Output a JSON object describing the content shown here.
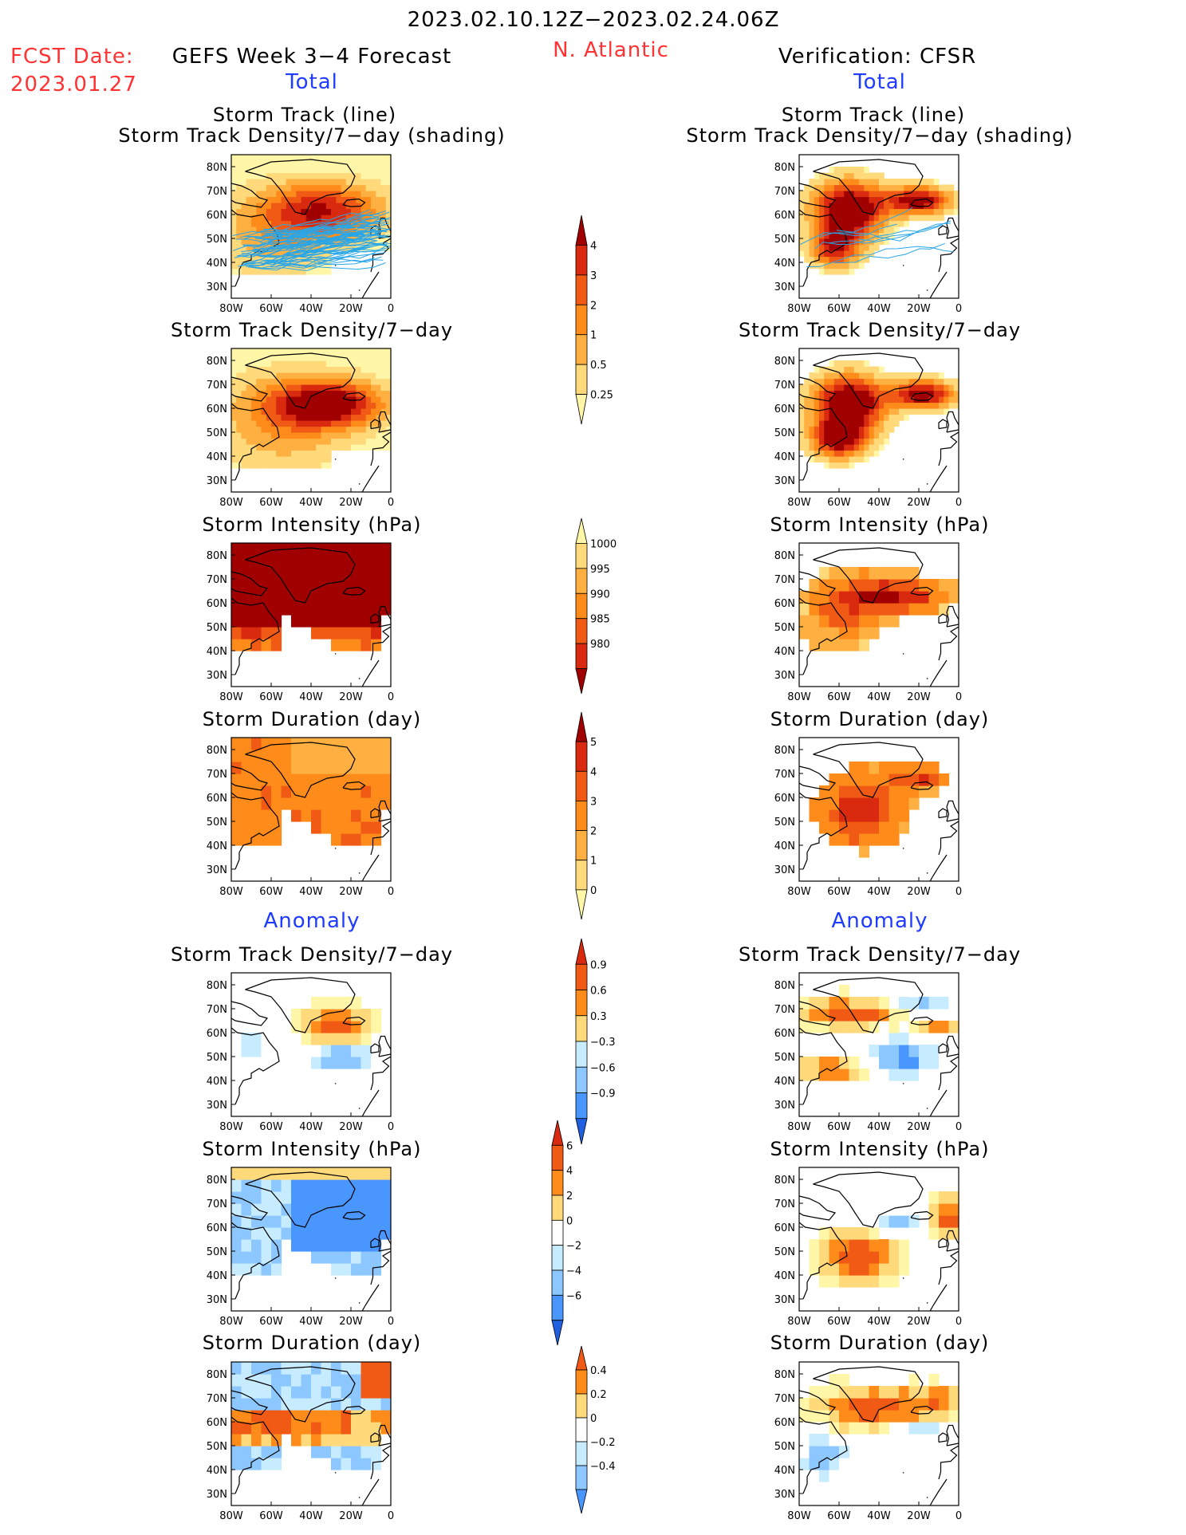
{
  "header": {
    "date_range": "2023.02.10.12Z−2023.02.24.06Z",
    "fcst_label": "FCST Date:",
    "fcst_date": "2023.01.27",
    "left_title": "GEFS Week 3−4 Forecast",
    "region": "N. Atlantic",
    "right_title": "Verification: CFSR",
    "total_left": "Total",
    "total_right": "Total",
    "anomaly_left": "Anomaly",
    "anomaly_right": "Anomaly"
  },
  "panel_titles": {
    "track_line": "Storm Track (line)",
    "track_shading": "Storm Track Density/7−day (shading)",
    "density": "Storm Track Density/7−day",
    "intensity": "Storm Intensity (hPa)",
    "duration": "Storm Duration (day)"
  },
  "axes": {
    "lat_ticks": [
      "80N",
      "70N",
      "60N",
      "50N",
      "40N",
      "30N"
    ],
    "lon_ticks": [
      "80W",
      "60W",
      "40W",
      "20W",
      "0"
    ]
  },
  "colorbars": {
    "total_density": [
      "4",
      "3",
      "2",
      "1",
      "0.5",
      "0.25"
    ],
    "total_intensity": [
      "1000",
      "995",
      "990",
      "985",
      "980"
    ],
    "total_duration": [
      "5",
      "4",
      "3",
      "2",
      "1",
      "0"
    ],
    "anom_density": [
      "0.9",
      "0.6",
      "0.3",
      "−0.3",
      "−0.6",
      "−0.9"
    ],
    "anom_intensity": [
      "6",
      "4",
      "2",
      "0",
      "−2",
      "−4",
      "−6"
    ],
    "anom_duration": [
      "0.4",
      "0.2",
      "0",
      "−0.2",
      "−0.4"
    ]
  },
  "colors": {
    "warm": [
      "#fff6a8",
      "#ffd97a",
      "#ffb040",
      "#ff8c1a",
      "#f05a14",
      "#d92a10",
      "#a00000"
    ],
    "cool": [
      "#ffffff",
      "#c7ecff",
      "#8cc8ff",
      "#4a96ff",
      "#1f5fe0"
    ],
    "track_line": "#29a6e8",
    "text_red": "#ff3333",
    "text_blue": "#1f3bff"
  },
  "chart_data": [
    {
      "type": "heatmap",
      "panel": "GEFS Total Storm Track (line) / Density (shading)"
    },
    {
      "type": "heatmap",
      "panel": "CFSR Total Storm Track (line) / Density (shading)"
    },
    {
      "type": "heatmap",
      "panel": "GEFS Total Storm Track Density/7-day"
    },
    {
      "type": "heatmap",
      "panel": "CFSR Total Storm Track Density/7-day"
    },
    {
      "type": "heatmap",
      "panel": "GEFS Total Storm Intensity (hPa)"
    },
    {
      "type": "heatmap",
      "panel": "CFSR Total Storm Intensity (hPa)"
    },
    {
      "type": "heatmap",
      "panel": "GEFS Total Storm Duration (day)"
    },
    {
      "type": "heatmap",
      "panel": "CFSR Total Storm Duration (day)"
    },
    {
      "type": "heatmap",
      "panel": "GEFS Anomaly Storm Track Density/7-day"
    },
    {
      "type": "heatmap",
      "panel": "CFSR Anomaly Storm Track Density/7-day"
    },
    {
      "type": "heatmap",
      "panel": "GEFS Anomaly Storm Intensity (hPa)"
    },
    {
      "type": "heatmap",
      "panel": "CFSR Anomaly Storm Intensity (hPa)"
    },
    {
      "type": "heatmap",
      "panel": "GEFS Anomaly Storm Duration (day)"
    },
    {
      "type": "heatmap",
      "panel": "CFSR Anomaly Storm Duration (day)"
    }
  ]
}
